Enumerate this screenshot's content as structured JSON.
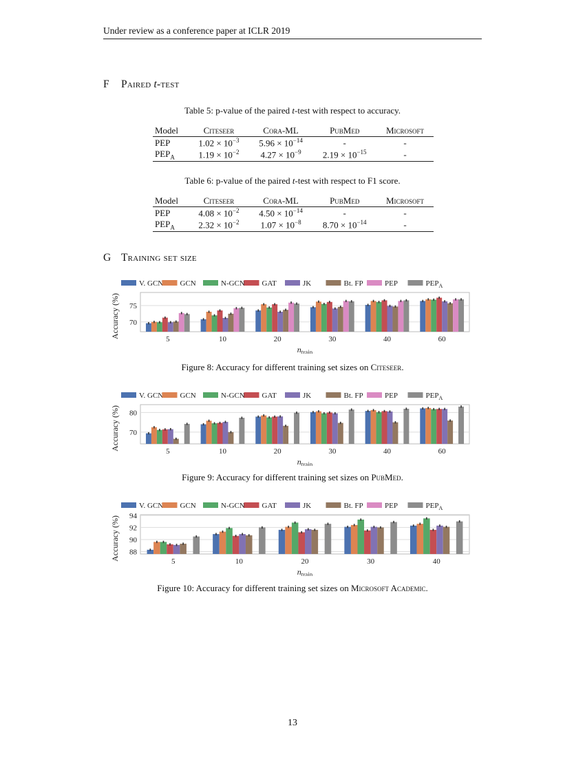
{
  "header": "Under review as a conference paper at ICLR 2019",
  "section_f": {
    "num": "F",
    "title_a": "Paired ",
    "title_t": "t",
    "title_b": "-test"
  },
  "section_g": {
    "num": "G",
    "title": "Training set size"
  },
  "table5": {
    "caption_a": "Table 5: p-value of the paired ",
    "caption_t": "t",
    "caption_b": "-test with respect to accuracy.",
    "headers": [
      "Model",
      "Citeseer",
      "Cora-ML",
      "PubMed",
      "Microsoft"
    ],
    "rows": [
      {
        "model": "PEP",
        "sub": "",
        "cells": [
          {
            "m": "1.02",
            "e": "−3"
          },
          {
            "m": "5.96",
            "e": "−14"
          },
          {
            "dash": "-"
          },
          {
            "dash": "-"
          }
        ]
      },
      {
        "model": "PEP",
        "sub": "A",
        "cells": [
          {
            "m": "1.19",
            "e": "−2"
          },
          {
            "m": "4.27",
            "e": "−9"
          },
          {
            "m": "2.19",
            "e": "−15"
          },
          {
            "dash": "-"
          }
        ]
      }
    ]
  },
  "table6": {
    "caption_a": "Table 6: p-value of the paired ",
    "caption_t": "t",
    "caption_b": "-test with respect to F1 score.",
    "headers": [
      "Model",
      "Citeseer",
      "Cora-ML",
      "PubMed",
      "Microsoft"
    ],
    "rows": [
      {
        "model": "PEP",
        "sub": "",
        "cells": [
          {
            "m": "4.08",
            "e": "−2"
          },
          {
            "m": "4.50",
            "e": "−14"
          },
          {
            "dash": "-"
          },
          {
            "dash": "-"
          }
        ]
      },
      {
        "model": "PEP",
        "sub": "A",
        "cells": [
          {
            "m": "2.32",
            "e": "−2"
          },
          {
            "m": "1.07",
            "e": "−8"
          },
          {
            "m": "8.70",
            "e": "−14"
          },
          {
            "dash": "-"
          }
        ]
      }
    ]
  },
  "figure8": {
    "caption_a": "Figure 8: Accuracy for different training set sizes on ",
    "caption_b": "Citeseer",
    "caption_c": "."
  },
  "figure9": {
    "caption_a": "Figure 9: Accuracy for different training set sizes on ",
    "caption_b": "PubMed",
    "caption_c": "."
  },
  "figure10": {
    "caption_a": "Figure 10: Accuracy for different training set sizes on ",
    "caption_b": "Microsoft Academic",
    "caption_c": "."
  },
  "page_number": "13",
  "chart_data": [
    {
      "type": "bar",
      "ylabel": "Accuracy (%)",
      "xlabel": "n",
      "xlabel_sub": "train",
      "categories": [
        "5",
        "10",
        "20",
        "30",
        "40",
        "60"
      ],
      "yticks": [
        70,
        75
      ],
      "ylim": [
        67,
        79
      ],
      "grid": true,
      "legend": "top",
      "series": [
        {
          "name": "V. GCN",
          "color": "#4c72b0",
          "values": [
            69.6,
            70.8,
            73.5,
            74.5,
            75.2,
            76.4
          ]
        },
        {
          "name": "GCN",
          "color": "#dd8452",
          "values": [
            70.0,
            73.1,
            75.4,
            76.2,
            76.4,
            76.9
          ]
        },
        {
          "name": "N-GCN",
          "color": "#55a868",
          "values": [
            69.9,
            72.0,
            74.4,
            75.5,
            76.1,
            76.8
          ]
        },
        {
          "name": "GAT",
          "color": "#c44e52",
          "values": [
            71.3,
            73.5,
            75.4,
            76.1,
            76.6,
            77.4
          ]
        },
        {
          "name": "JK",
          "color": "#8172b3",
          "values": [
            69.9,
            71.2,
            73.1,
            74.1,
            74.9,
            76.3
          ]
        },
        {
          "name": "Bt. FP",
          "color": "#937860",
          "values": [
            70.1,
            72.5,
            73.7,
            74.6,
            74.7,
            75.7
          ]
        },
        {
          "name": "PEP",
          "color": "#da8bc3",
          "values": [
            72.7,
            74.2,
            75.9,
            76.4,
            76.4,
            76.9
          ]
        },
        {
          "name": "PEP",
          "name_sub": "A",
          "color": "#8c8c8c",
          "values": [
            72.4,
            74.3,
            75.6,
            76.3,
            76.6,
            76.9
          ]
        }
      ]
    },
    {
      "type": "bar",
      "ylabel": "Accuracy (%)",
      "xlabel": "n",
      "xlabel_sub": "train",
      "categories": [
        "5",
        "10",
        "20",
        "30",
        "40",
        "60"
      ],
      "yticks": [
        70,
        80
      ],
      "ylim": [
        64,
        84
      ],
      "grid": true,
      "legend": "top",
      "series": [
        {
          "name": "V. GCN",
          "color": "#4c72b0",
          "values": [
            69.4,
            74.0,
            77.9,
            80.2,
            80.8,
            82.1
          ]
        },
        {
          "name": "GCN",
          "color": "#dd8452",
          "values": [
            72.5,
            75.8,
            78.5,
            80.6,
            81.2,
            82.3
          ]
        },
        {
          "name": "N-GCN",
          "color": "#55a868",
          "values": [
            71.1,
            74.5,
            77.5,
            79.6,
            80.2,
            81.7
          ]
        },
        {
          "name": "GAT",
          "color": "#c44e52",
          "values": [
            71.4,
            74.7,
            77.9,
            80.0,
            80.7,
            81.8
          ]
        },
        {
          "name": "JK",
          "color": "#8172b3",
          "values": [
            71.5,
            75.2,
            78.0,
            79.6,
            80.5,
            81.8
          ]
        },
        {
          "name": "Bt. FP",
          "color": "#937860",
          "values": [
            66.6,
            70.0,
            73.2,
            74.7,
            75.0,
            75.9
          ]
        },
        {
          "name": "PEP",
          "color": "#da8bc3",
          "values": [
            null,
            null,
            null,
            null,
            null,
            null
          ]
        },
        {
          "name": "PEP",
          "name_sub": "A",
          "color": "#8c8c8c",
          "values": [
            74.2,
            77.3,
            79.9,
            81.5,
            81.9,
            83.0
          ]
        }
      ]
    },
    {
      "type": "bar",
      "ylabel": "Accuracy (%)",
      "xlabel": "n",
      "xlabel_sub": "train",
      "categories": [
        "5",
        "10",
        "20",
        "30",
        "40"
      ],
      "yticks": [
        88,
        90,
        92,
        94
      ],
      "ylim": [
        87.6,
        94.1
      ],
      "grid": true,
      "legend": "top",
      "series": [
        {
          "name": "V. GCN",
          "color": "#4c72b0",
          "values": [
            88.3,
            90.9,
            91.6,
            92.1,
            92.3
          ]
        },
        {
          "name": "GCN",
          "color": "#dd8452",
          "values": [
            89.6,
            91.3,
            92.1,
            92.4,
            92.6
          ]
        },
        {
          "name": "N-GCN",
          "color": "#55a868",
          "values": [
            89.6,
            91.9,
            92.8,
            93.3,
            93.5
          ]
        },
        {
          "name": "GAT",
          "color": "#c44e52",
          "values": [
            89.2,
            90.6,
            91.2,
            91.5,
            91.6
          ]
        },
        {
          "name": "JK",
          "color": "#8172b3",
          "values": [
            89.1,
            90.9,
            91.7,
            92.1,
            92.3
          ]
        },
        {
          "name": "Bt. FP",
          "color": "#937860",
          "values": [
            89.3,
            90.7,
            91.6,
            92.0,
            92.1
          ]
        },
        {
          "name": "PEP",
          "color": "#da8bc3",
          "values": [
            null,
            null,
            null,
            null,
            null
          ]
        },
        {
          "name": "PEP",
          "name_sub": "A",
          "color": "#8c8c8c",
          "values": [
            90.5,
            92.0,
            92.6,
            92.9,
            93.0
          ]
        }
      ]
    }
  ]
}
